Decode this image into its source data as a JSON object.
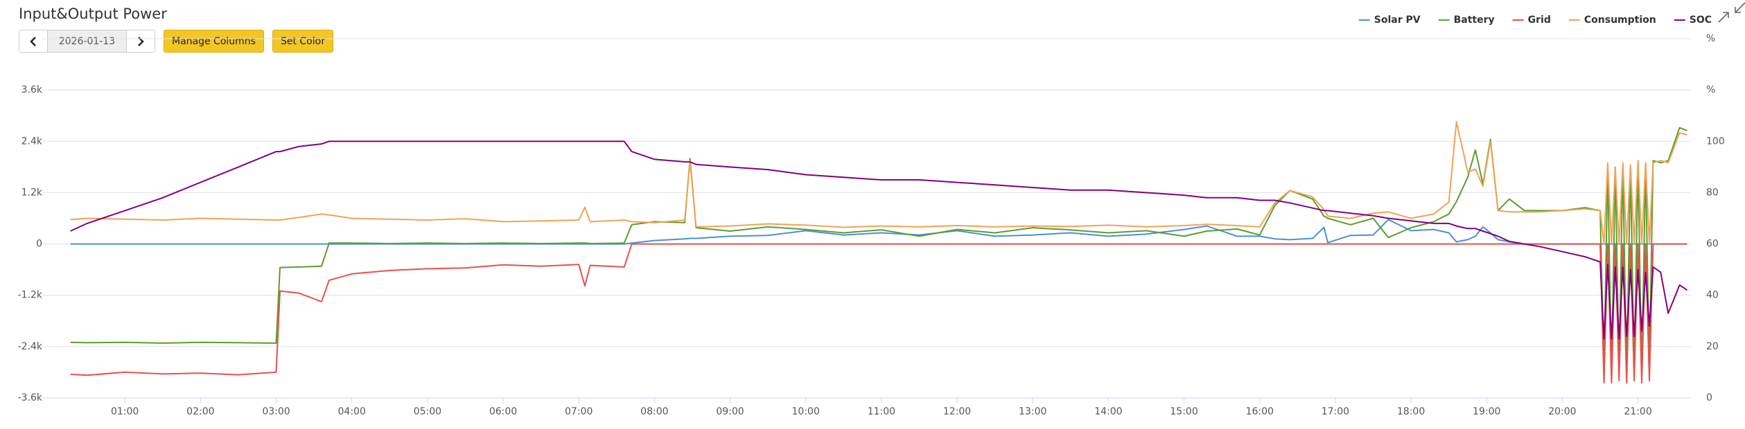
{
  "header": {
    "title": "Input&Output Power"
  },
  "controls": {
    "date": "2026-01-13",
    "buttons": [
      "Manage Columns",
      "Set Color"
    ]
  },
  "chart_data": {
    "type": "line",
    "x": [
      0.28,
      0.5,
      1.0,
      1.5,
      2.0,
      2.5,
      3.0,
      3.05,
      3.3,
      3.6,
      3.7,
      4.0,
      4.5,
      5.0,
      5.5,
      6.0,
      6.5,
      7.0,
      7.08,
      7.15,
      7.6,
      7.7,
      8.0,
      8.4,
      8.47,
      8.55,
      9.0,
      9.5,
      10.0,
      10.5,
      11.0,
      11.5,
      12.0,
      12.5,
      13.0,
      13.5,
      14.0,
      14.5,
      15.0,
      15.3,
      15.7,
      16.0,
      16.2,
      16.4,
      16.7,
      16.85,
      16.9,
      17.2,
      17.5,
      17.7,
      18.0,
      18.3,
      18.5,
      18.6,
      18.75,
      18.85,
      18.95,
      19.05,
      19.15,
      19.3,
      19.5,
      19.7,
      20.0,
      20.3,
      20.5,
      20.55,
      20.6,
      20.65,
      20.7,
      20.75,
      20.8,
      20.85,
      20.9,
      20.95,
      21.0,
      21.05,
      21.1,
      21.15,
      21.2,
      21.3,
      21.4,
      21.55,
      21.65
    ],
    "xlim": [
      0,
      21.7
    ],
    "xticks": [
      {
        "value": 1,
        "label": "01:00"
      },
      {
        "value": 2,
        "label": "02:00"
      },
      {
        "value": 3,
        "label": "03:00"
      },
      {
        "value": 4,
        "label": "04:00"
      },
      {
        "value": 5,
        "label": "05:00"
      },
      {
        "value": 6,
        "label": "06:00"
      },
      {
        "value": 7,
        "label": "07:00"
      },
      {
        "value": 8,
        "label": "08:00"
      },
      {
        "value": 9,
        "label": "09:00"
      },
      {
        "value": 10,
        "label": "10:00"
      },
      {
        "value": 11,
        "label": "11:00"
      },
      {
        "value": 12,
        "label": "12:00"
      },
      {
        "value": 13,
        "label": "13:00"
      },
      {
        "value": 14,
        "label": "14:00"
      },
      {
        "value": 15,
        "label": "15:00"
      },
      {
        "value": 16,
        "label": "16:00"
      },
      {
        "value": 17,
        "label": "17:00"
      },
      {
        "value": 18,
        "label": "18:00"
      },
      {
        "value": 19,
        "label": "19:00"
      },
      {
        "value": 20,
        "label": "20:00"
      },
      {
        "value": 21,
        "label": "21:00"
      }
    ],
    "ylim": [
      -3600,
      4800
    ],
    "yticks": [
      {
        "value": -3600,
        "label": "-3.6k"
      },
      {
        "value": -2400,
        "label": "-2.4k"
      },
      {
        "value": -1200,
        "label": "-1.2k"
      },
      0,
      {
        "value": 1200,
        "label": "1.2k"
      },
      {
        "value": 2400,
        "label": "2.4k"
      },
      {
        "value": 3600,
        "label": "3.6k"
      }
    ],
    "y2lim": [
      0,
      140
    ],
    "y2ticks": [
      0,
      20,
      40,
      60,
      80,
      100,
      {
        "value": 120,
        "label": "%"
      },
      {
        "value": 140,
        "label": "%"
      }
    ],
    "grid": true,
    "legend": "top-right",
    "series": [
      {
        "name": "Solar PV",
        "color": "#4a8fd8",
        "values": [
          0,
          0,
          0,
          0,
          0,
          0,
          0,
          0,
          0,
          0,
          0,
          0,
          0,
          0,
          0,
          0,
          0,
          0,
          0,
          0,
          0,
          20,
          80,
          120,
          130,
          130,
          180,
          200,
          310,
          210,
          260,
          210,
          310,
          180,
          210,
          260,
          180,
          230,
          340,
          420,
          180,
          180,
          120,
          100,
          130,
          390,
          30,
          200,
          210,
          570,
          310,
          340,
          260,
          50,
          100,
          180,
          400,
          260,
          100,
          50,
          0,
          0,
          0,
          0,
          0,
          0,
          0,
          0,
          0,
          0,
          0,
          0,
          0,
          0,
          0,
          0,
          0,
          0,
          0,
          0,
          0,
          0,
          0
        ]
      },
      {
        "name": "Battery",
        "color": "#5a9e2e",
        "values": [
          -2300,
          -2310,
          -2300,
          -2320,
          -2300,
          -2310,
          -2320,
          -550,
          -540,
          -520,
          20,
          20,
          10,
          20,
          10,
          20,
          10,
          20,
          20,
          10,
          20,
          450,
          520,
          500,
          2000,
          380,
          300,
          400,
          340,
          260,
          330,
          180,
          340,
          260,
          380,
          330,
          260,
          310,
          180,
          300,
          350,
          210,
          900,
          1250,
          1050,
          650,
          600,
          450,
          600,
          150,
          380,
          520,
          700,
          990,
          1560,
          2200,
          1400,
          2450,
          780,
          1050,
          780,
          780,
          780,
          850,
          780,
          -3000,
          1800,
          -3100,
          1800,
          -3000,
          1850,
          -3100,
          1800,
          -3000,
          1900,
          -3100,
          1800,
          -2900,
          1950,
          1900,
          1950,
          2720,
          2650
        ]
      },
      {
        "name": "Grid",
        "color": "#e8504a",
        "values": [
          -3050,
          -3070,
          -3000,
          -3040,
          -3020,
          -3060,
          -3000,
          -1100,
          -1150,
          -1350,
          -850,
          -700,
          -620,
          -580,
          -560,
          -490,
          -520,
          -480,
          -980,
          -500,
          -540,
          0,
          0,
          0,
          0,
          0,
          0,
          0,
          0,
          0,
          0,
          0,
          0,
          0,
          0,
          0,
          0,
          0,
          0,
          0,
          0,
          0,
          0,
          0,
          0,
          0,
          0,
          0,
          0,
          0,
          0,
          0,
          0,
          0,
          0,
          0,
          0,
          0,
          0,
          0,
          0,
          0,
          0,
          0,
          0,
          -3250,
          0,
          -3250,
          0,
          -3200,
          0,
          -3250,
          0,
          -3200,
          0,
          -3250,
          0,
          -3200,
          0,
          0,
          0,
          0,
          0
        ]
      },
      {
        "name": "Consumption",
        "color": "#f2a255",
        "values": [
          570,
          600,
          580,
          560,
          600,
          580,
          560,
          560,
          620,
          700,
          680,
          600,
          580,
          560,
          590,
          520,
          540,
          560,
          860,
          520,
          560,
          520,
          500,
          560,
          1950,
          400,
          420,
          470,
          440,
          390,
          420,
          400,
          430,
          400,
          420,
          410,
          440,
          400,
          430,
          460,
          430,
          400,
          960,
          1250,
          1100,
          800,
          650,
          600,
          720,
          750,
          600,
          700,
          980,
          2860,
          1680,
          1750,
          1350,
          2400,
          780,
          750,
          750,
          750,
          780,
          820,
          780,
          0,
          1900,
          0,
          1800,
          0,
          1900,
          0,
          1850,
          0,
          1950,
          0,
          1900,
          0,
          1900,
          1950,
          1900,
          2600,
          2550
        ]
      },
      {
        "name": "SOC",
        "color": "#800080",
        "axis": "y2",
        "values": [
          65,
          68,
          73,
          78,
          84,
          90,
          96,
          96,
          98,
          99,
          100,
          100,
          100,
          100,
          100,
          100,
          100,
          100,
          100,
          100,
          100,
          96,
          93,
          92,
          92,
          91,
          90,
          89,
          87,
          86,
          85,
          85,
          84,
          83,
          82,
          81,
          81,
          80,
          79,
          78,
          78,
          77,
          77,
          76,
          74,
          73,
          73,
          72,
          71,
          70,
          69,
          68,
          68,
          67,
          66,
          66,
          65,
          64,
          63,
          61,
          60,
          59,
          57,
          55,
          53,
          23,
          52,
          23,
          51,
          23,
          51,
          24,
          50,
          24,
          50,
          26,
          49,
          28,
          51,
          49,
          33,
          44,
          42
        ]
      }
    ]
  }
}
